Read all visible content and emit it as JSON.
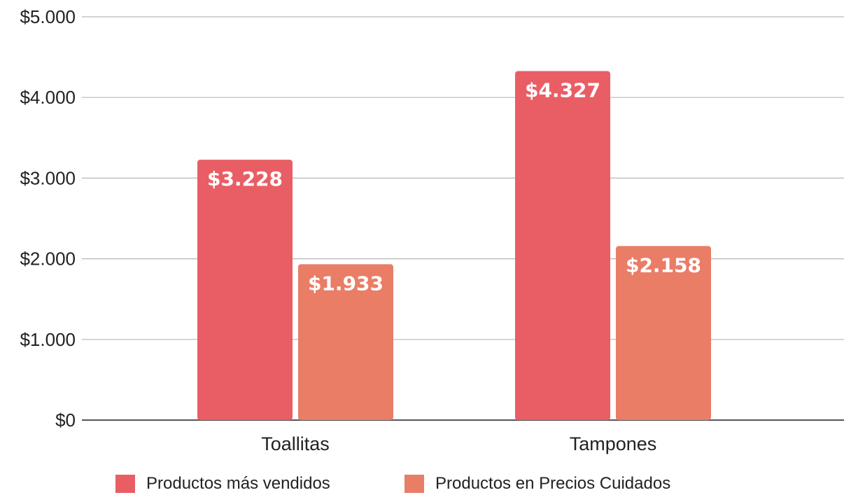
{
  "chart_data": {
    "type": "bar",
    "categories": [
      "Toallitas",
      "Tampones"
    ],
    "series": [
      {
        "name": "Productos más vendidos",
        "values": [
          3228,
          4327
        ],
        "labels": [
          "$3.228",
          "$4.327"
        ],
        "color": "#e95e65"
      },
      {
        "name": "Productos en Precios Cuidados",
        "values": [
          1933,
          2158
        ],
        "labels": [
          "$1.933",
          "$2.158"
        ],
        "color": "#e97d66"
      }
    ],
    "ylim": [
      0,
      5000
    ],
    "yticks": [
      0,
      1000,
      2000,
      3000,
      4000,
      5000
    ],
    "ytick_labels": [
      "$0",
      "$1.000",
      "$2.000",
      "$3.000",
      "$4.000",
      "$5.000"
    ],
    "grid": true,
    "legend_position": "bottom-center",
    "title": "",
    "xlabel": "",
    "ylabel": ""
  }
}
